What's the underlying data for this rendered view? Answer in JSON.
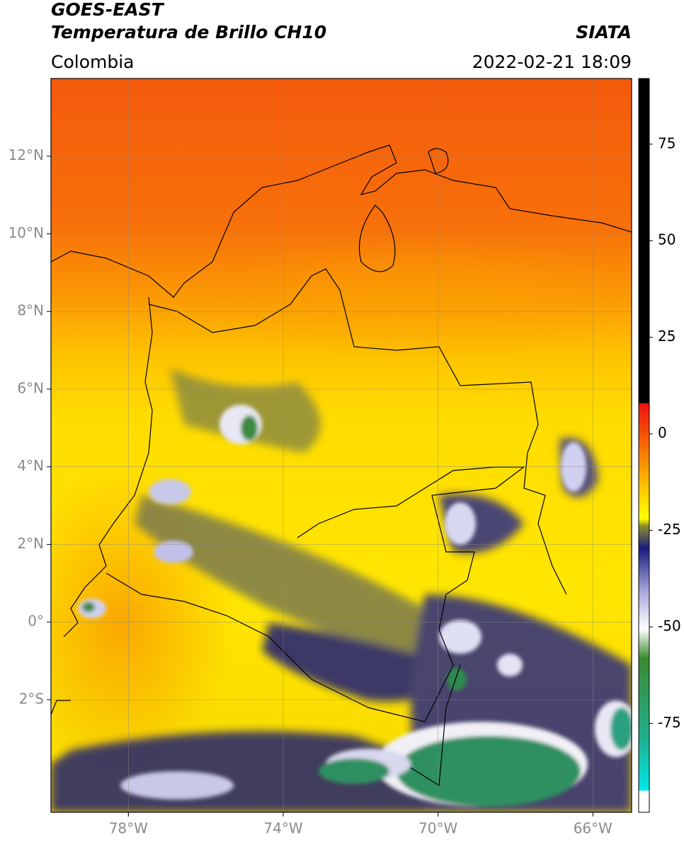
{
  "header": {
    "title": "GOES-EAST",
    "subtitle": "Temperatura de Brillo CH10",
    "region": "Colombia",
    "source": "SIATA",
    "datetime": "2022-02-21 18:09"
  },
  "map": {
    "lonlim": [
      -80,
      -65
    ],
    "latlim": [
      -4.9,
      14
    ],
    "lon_ticks": [
      {
        "value": -78,
        "label": "78°W"
      },
      {
        "value": -74,
        "label": "74°W"
      },
      {
        "value": -70,
        "label": "70°W"
      },
      {
        "value": -66,
        "label": "66°W"
      }
    ],
    "lat_ticks": [
      {
        "value": 12,
        "label": "12°N"
      },
      {
        "value": 10,
        "label": "10°N"
      },
      {
        "value": 8,
        "label": "8°N"
      },
      {
        "value": 6,
        "label": "6°N"
      },
      {
        "value": 4,
        "label": "4°N"
      },
      {
        "value": 2,
        "label": "2°N"
      },
      {
        "value": 0,
        "label": "0°"
      },
      {
        "value": -2,
        "label": "2°S"
      }
    ],
    "grid": true
  },
  "colorbar": {
    "lim": [
      -98,
      92
    ],
    "ticks": [
      75,
      50,
      25,
      0,
      -25,
      -50,
      -75
    ]
  }
}
